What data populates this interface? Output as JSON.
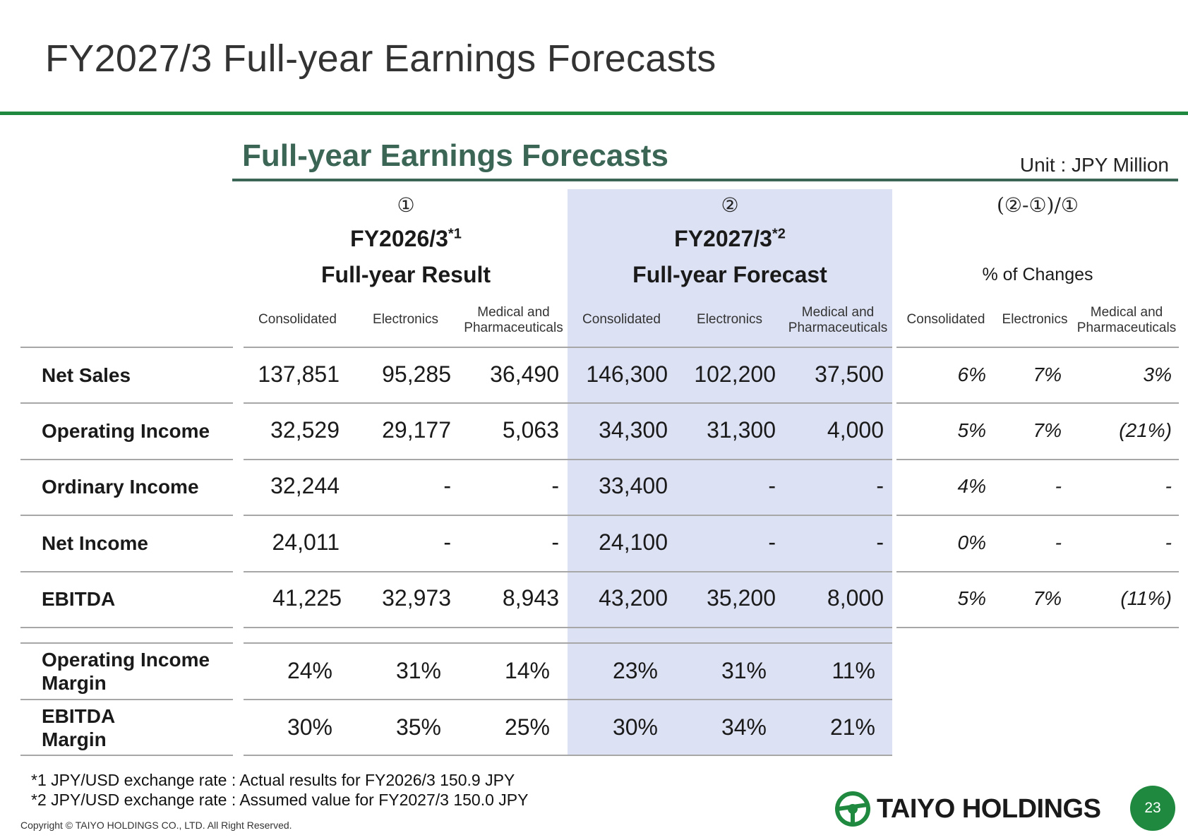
{
  "page": {
    "title": "FY2027/3 Full-year Earnings Forecasts",
    "section_title": "Full-year Earnings Forecasts",
    "unit": "Unit : JPY Million"
  },
  "headers": {
    "result": {
      "marker": "①",
      "period": "FY2026/3",
      "note": "*1",
      "subtitle": "Full-year Result"
    },
    "forecast": {
      "marker": "②",
      "period": "FY2027/3",
      "note": "*2",
      "subtitle": "Full-year Forecast"
    },
    "change": {
      "marker": "(②-①)/①",
      "subtitle": "% of Changes"
    },
    "columns": {
      "consolidated": "Consolidated",
      "electronics": "Electronics",
      "medical_line1": "Medical and",
      "medical_line2": "Pharmaceuticals"
    }
  },
  "rows": [
    {
      "label": "Net Sales",
      "result": [
        "137,851",
        "95,285",
        "36,490"
      ],
      "forecast": [
        "146,300",
        "102,200",
        "37,500"
      ],
      "change": [
        "6%",
        "7%",
        "3%"
      ]
    },
    {
      "label": "Operating Income",
      "result": [
        "32,529",
        "29,177",
        "5,063"
      ],
      "forecast": [
        "34,300",
        "31,300",
        "4,000"
      ],
      "change": [
        "5%",
        "7%",
        "(21%)"
      ]
    },
    {
      "label": "Ordinary Income",
      "result": [
        "32,244",
        "-",
        "-"
      ],
      "forecast": [
        "33,400",
        "-",
        "-"
      ],
      "change": [
        "4%",
        "-",
        "-"
      ]
    },
    {
      "label": "Net Income",
      "result": [
        "24,011",
        "-",
        "-"
      ],
      "forecast": [
        "24,100",
        "-",
        "-"
      ],
      "change": [
        "0%",
        "-",
        "-"
      ]
    },
    {
      "label": "EBITDA",
      "result": [
        "41,225",
        "32,973",
        "8,943"
      ],
      "forecast": [
        "43,200",
        "35,200",
        "8,000"
      ],
      "change": [
        "5%",
        "7%",
        "(11%)"
      ]
    }
  ],
  "margin_rows": [
    {
      "label_line1": "Operating Income",
      "label_line2": "Margin",
      "result": [
        "24%",
        "31%",
        "14%"
      ],
      "forecast": [
        "23%",
        "31%",
        "11%"
      ]
    },
    {
      "label_line1": "EBITDA",
      "label_line2": "Margin",
      "result": [
        "30%",
        "35%",
        "25%"
      ],
      "forecast": [
        "30%",
        "34%",
        "21%"
      ]
    }
  ],
  "footnotes": [
    "*1 JPY/USD exchange rate : Actual results for FY2026/3 150.9 JPY",
    "*2 JPY/USD exchange rate : Assumed value for FY2027/3 150.0 JPY"
  ],
  "copyright": "Copyright © TAIYO HOLDINGS CO., LTD.  All Right Reserved.",
  "logo": {
    "text": "TAIYO HOLDINGS",
    "icon": "taiyo-logo-icon",
    "color": "#1f8a3f"
  },
  "page_number": "23"
}
